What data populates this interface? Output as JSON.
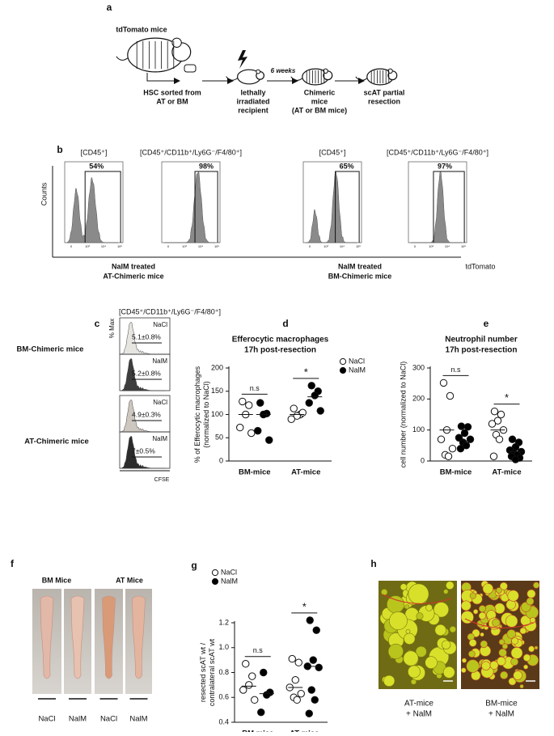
{
  "panel_a": {
    "letter": "a",
    "source": "tdTomato mice",
    "interval": "6 weeks",
    "steps": [
      [
        "HSC sorted from",
        "AT or BM"
      ],
      [
        "lethally",
        "irradiated",
        "recipient"
      ],
      [
        "Chimeric",
        "mice",
        "(AT or BM mice)"
      ],
      [
        "scAT partial",
        "resection"
      ]
    ]
  },
  "panel_b": {
    "letter": "b",
    "y_label": "Counts",
    "x_label": "tdTomato",
    "x_ticks": [
      "0",
      "10³",
      "10⁴",
      "10⁵"
    ],
    "plots": [
      {
        "title": "[CD45⁺]",
        "gate": "54%"
      },
      {
        "title": "[CD45⁺/CD11b⁺/Ly6G⁻/F4/80⁺]",
        "gate": "98%"
      },
      {
        "title": "[CD45⁺]",
        "gate": "65%"
      },
      {
        "title": "[CD45⁺/CD11b⁺/Ly6G⁻/F4/80⁺]",
        "gate": "97%"
      }
    ],
    "groups": [
      [
        "NalM treated",
        "AT-Chimeric mice"
      ],
      [
        "NalM treated",
        "BM-Chimeric mice"
      ]
    ]
  },
  "panel_c": {
    "letter": "c",
    "title": "[CD45⁺/CD11b⁺/Ly6G⁻/F4/80⁺]",
    "y_label": "% Max",
    "x_label": "CFSE",
    "groups": [
      {
        "name": "BM-Chimeric mice",
        "rows": [
          {
            "treatment": "NaCl",
            "value": "5.1±0.8%"
          },
          {
            "treatment": "NalM",
            "value": "5.2±0.8%"
          }
        ]
      },
      {
        "name": "AT-Chimeric mice",
        "rows": [
          {
            "treatment": "NaCl",
            "value": "4.9±0.3%"
          },
          {
            "treatment": "NalM",
            "value": "7±0.5%"
          }
        ]
      }
    ]
  },
  "chart_data": [
    {
      "type": "strip",
      "panel_label": "d",
      "title": "Efferocytic macrophages",
      "subtitle": "17h post-resection",
      "y_label": [
        "% of Efferocytic macrophages",
        "(normalized to NaCl)"
      ],
      "categories": [
        "BM-mice",
        "AT-mice"
      ],
      "ylim": [
        0,
        200
      ],
      "yticks": [
        0,
        50,
        100,
        150,
        200
      ],
      "legend": "right",
      "annotations": [
        "n.s",
        "*"
      ],
      "series": [
        {
          "name": "NaCl",
          "color": "#ffffff",
          "values": [
            [
              128,
              120,
              100,
              72,
              60
            ],
            [
              113,
              100,
              97,
              90,
              104
            ]
          ],
          "means": [
            100,
            100
          ]
        },
        {
          "name": "NalM",
          "color": "#000000",
          "values": [
            [
              125,
              102,
              100,
              65,
              45
            ],
            [
              162,
              150,
              141,
              125,
              108
            ]
          ],
          "means": [
            100,
            138
          ]
        }
      ]
    },
    {
      "type": "strip",
      "panel_label": "e",
      "title": "Neutrophil number",
      "subtitle": "17h post-resection",
      "y_label": [
        "cell number (normalized to NaCl)"
      ],
      "categories": [
        "BM-mice",
        "AT-mice"
      ],
      "ylim": [
        0,
        300
      ],
      "yticks": [
        0,
        100,
        200,
        300
      ],
      "legend": "none",
      "annotations": [
        "n.s",
        "*"
      ],
      "series": [
        {
          "color": "#ffffff",
          "values": [
            [
              252,
              210,
              100,
              70,
              40,
              20,
              15
            ],
            [
              160,
              150,
              130,
              120,
              100,
              85,
              70,
              15
            ]
          ],
          "means": [
            100,
            100
          ]
        },
        {
          "color": "#000000",
          "values": [
            [
              112,
              110,
              90,
              75,
              70,
              60,
              50,
              40
            ],
            [
              70,
              60,
              45,
              35,
              30,
              25,
              20,
              15,
              10,
              5
            ]
          ],
          "means": [
            65,
            30
          ]
        }
      ]
    },
    {
      "type": "strip",
      "panel_label": "g",
      "y_label": [
        "resected scAT wt /",
        "contralateral scAT wt"
      ],
      "categories": [
        "BM mice",
        "AT mice"
      ],
      "ylim": [
        0.4,
        1.2
      ],
      "yticks": [
        0.4,
        0.6,
        0.8,
        {
          "value": 1,
          "label": "1.0"
        },
        1.2
      ],
      "legend": "top-left",
      "annotations": [
        "n.s",
        "*"
      ],
      "series": [
        {
          "name": "NaCl",
          "color": "#ffffff",
          "values": [
            [
              0.87,
              0.77,
              0.7,
              0.66,
              0.58
            ],
            [
              0.91,
              0.88,
              0.74,
              0.68,
              0.63,
              0.6,
              0.58
            ]
          ],
          "means": [
            0.69,
            0.68
          ]
        },
        {
          "name": "NalM",
          "color": "#000000",
          "values": [
            [
              0.8,
              0.64,
              0.62,
              0.48
            ],
            [
              1.22,
              1.14,
              0.9,
              0.85,
              0.84,
              0.66,
              0.58,
              0.47
            ]
          ],
          "means": [
            0.63,
            0.85
          ]
        }
      ]
    }
  ],
  "panel_f": {
    "letter": "f",
    "groups": [
      "BM Mice",
      "AT Mice"
    ],
    "labels": [
      "NaCl",
      "NalM",
      "NaCl",
      "NalM"
    ]
  },
  "panel_h": {
    "letter": "h",
    "captions": [
      [
        "AT-mice",
        "+ NalM"
      ],
      [
        "BM-mice",
        "+ NalM"
      ]
    ]
  }
}
